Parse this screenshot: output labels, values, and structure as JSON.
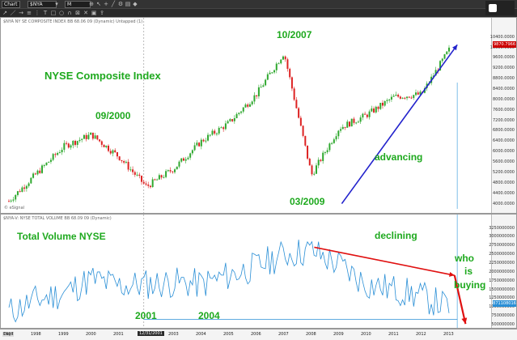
{
  "toolbar": {
    "chart_label": "Chart",
    "symbol": "$NYA",
    "period": "M",
    "left_icons": [
      "zoom-icon",
      "cursor-icon",
      "crosshair-icon",
      "draw-line-icon",
      "settings-icon"
    ],
    "tool_icons": [
      "arrow-icon",
      "line-icon",
      "ray-icon",
      "channel-icon",
      "fib-icon",
      "text-icon",
      "shape-icon",
      "magnet-icon",
      "lock-icon",
      "trash-icon",
      "save-icon",
      "export-icon"
    ]
  },
  "top_pane": {
    "header": "$NYA NY SE COMPOSITE INDEX  BB  68.06 09  (Dynamic)  Untapped  (1)",
    "title": "NYSE Composite Index",
    "annotations": {
      "peak_2000": "09/2000",
      "peak_2007": "10/2007",
      "low_2009": "03/2009",
      "advancing": "advancing"
    },
    "ylabels": [
      "10400.0000",
      "10000.0000",
      "9600.0000",
      "9200.0000",
      "8800.0000",
      "8400.0000",
      "8000.0000",
      "7600.0000",
      "7200.0000",
      "6800.0000",
      "6400.0000",
      "6000.0000",
      "5600.0000",
      "5200.0000",
      "4800.0000",
      "4400.0000",
      "4000.0000"
    ],
    "last_value": "9870.7966",
    "watermark": "© eSignal"
  },
  "bottom_pane": {
    "header": "$NYA-V: NYSE TOTAL VOLUME  BB  68.09 09  (Dynamic)",
    "title": "Total Volume NYSE",
    "annotations": {
      "declining": "declining",
      "who_is_buying": [
        "who",
        "is",
        "buying"
      ],
      "low_2001": "2001",
      "low_2004": "2004"
    },
    "ylabels": [
      "3250000000",
      "3000000000",
      "2750000000",
      "2500000000",
      "2250000000",
      "2000000000",
      "1750000000",
      "1500000000",
      "1250000000",
      "1000000000",
      "750000000",
      "500000000"
    ],
    "last_value": "871108016"
  },
  "xaxis": {
    "label": "Days",
    "years": [
      "1997",
      "1998",
      "1999",
      "2000",
      "2001",
      "2002",
      "2003",
      "2004",
      "2005",
      "2006",
      "2007",
      "2008",
      "2009",
      "2010",
      "2011",
      "2012",
      "2013"
    ],
    "cursor_date": "12/31/2001"
  },
  "chart_data": {
    "type": "line",
    "title": "NYSE Composite Index",
    "x": [
      1997,
      1998,
      1999,
      2000,
      2001,
      2002,
      2003,
      2004,
      2005,
      2006,
      2007,
      2008,
      2009,
      2010,
      2011,
      2012,
      2013
    ],
    "series": [
      {
        "name": "NYSE Composite Index",
        "values": [
          4100,
          5150,
          6200,
          6650,
          5800,
          4650,
          5350,
          6400,
          7100,
          8200,
          9800,
          5100,
          6900,
          7400,
          8100,
          8200,
          9900
        ]
      },
      {
        "name": "Total Volume NYSE",
        "values": [
          850000000,
          1200000000,
          1400000000,
          1800000000,
          1600000000,
          1650000000,
          1700000000,
          1650000000,
          1900000000,
          2150000000,
          2500000000,
          2600000000,
          2200000000,
          1650000000,
          1500000000,
          1300000000,
          1000000000
        ]
      }
    ],
    "ylim_top": [
      3800,
      10700
    ],
    "ylim_bottom": [
      500000000,
      3400000000
    ]
  },
  "colors": {
    "up_bar": "#2fa82f",
    "down_bar": "#d22",
    "annotation": "#1ea91e",
    "trend_arrow": "#2222cc",
    "volume_line": "#2a8fd6",
    "decline_arrow": "#e01010"
  }
}
